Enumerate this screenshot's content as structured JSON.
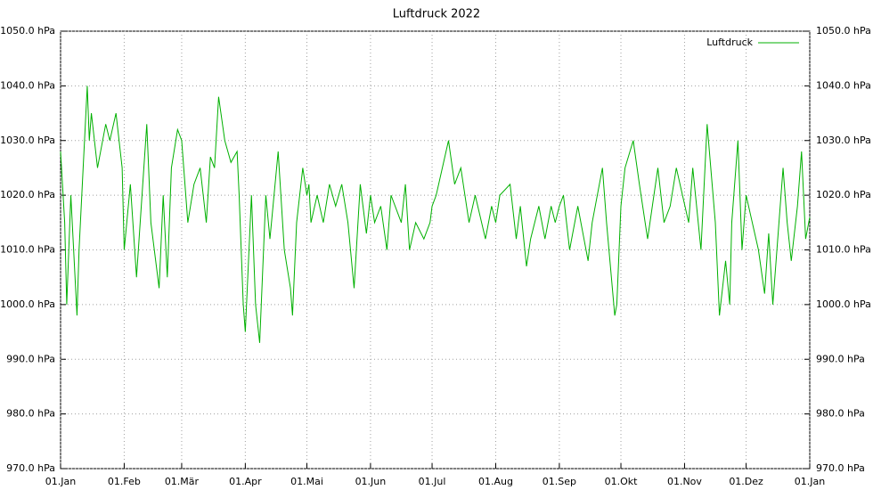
{
  "chart_data": {
    "type": "line",
    "title": "Luftdruck 2022",
    "legend": "upper right",
    "grid": true,
    "xlim": [
      0,
      365
    ],
    "ylim": [
      970,
      1050
    ],
    "xticks": [
      {
        "value": 0,
        "label": "01.Jan"
      },
      {
        "value": 31,
        "label": "01.Feb"
      },
      {
        "value": 59,
        "label": "01.Mär"
      },
      {
        "value": 90,
        "label": "01.Apr"
      },
      {
        "value": 120,
        "label": "01.Mai"
      },
      {
        "value": 151,
        "label": "01.Jun"
      },
      {
        "value": 181,
        "label": "01.Jul"
      },
      {
        "value": 212,
        "label": "01.Aug"
      },
      {
        "value": 243,
        "label": "01.Sep"
      },
      {
        "value": 273,
        "label": "01.Okt"
      },
      {
        "value": 304,
        "label": "01.Nov"
      },
      {
        "value": 334,
        "label": "01.Dez"
      },
      {
        "value": 365,
        "label": "01.Jan"
      }
    ],
    "yticks": [
      {
        "value": 970,
        "label": "970.0 hPa"
      },
      {
        "value": 980,
        "label": "980.0 hPa"
      },
      {
        "value": 990,
        "label": "990.0 hPa"
      },
      {
        "value": 1000,
        "label": "1000.0 hPa"
      },
      {
        "value": 1010,
        "label": "1010.0 hPa"
      },
      {
        "value": 1020,
        "label": "1020.0 hPa"
      },
      {
        "value": 1030,
        "label": "1030.0 hPa"
      },
      {
        "value": 1040,
        "label": "1040.0 hPa"
      },
      {
        "value": 1050,
        "label": "1050.0 hPa"
      }
    ],
    "series": [
      {
        "name": "Luftdruck",
        "color": "#00b000",
        "x": [
          0,
          2,
          3,
          5,
          8,
          9,
          13,
          14,
          15,
          18,
          22,
          24,
          27,
          30,
          31,
          34,
          37,
          42,
          44,
          48,
          50,
          52,
          54,
          57,
          59,
          60,
          62,
          65,
          68,
          71,
          73,
          75,
          77,
          80,
          83,
          86,
          87,
          89,
          90,
          93,
          95,
          97,
          100,
          102,
          104,
          106,
          109,
          112,
          113,
          115,
          118,
          120,
          121,
          122,
          125,
          128,
          131,
          134,
          137,
          140,
          143,
          146,
          149,
          151,
          153,
          156,
          159,
          161,
          166,
          168,
          170,
          173,
          177,
          180,
          181,
          183,
          189,
          192,
          195,
          199,
          202,
          207,
          210,
          212,
          214,
          219,
          222,
          224,
          227,
          229,
          233,
          236,
          239,
          241,
          243,
          245,
          248,
          252,
          255,
          257,
          259,
          264,
          266,
          270,
          271,
          273,
          275,
          279,
          282,
          286,
          291,
          294,
          297,
          300,
          303,
          306,
          308,
          312,
          315,
          319,
          321,
          324,
          326,
          327,
          330,
          332,
          334,
          337,
          340,
          343,
          345,
          347,
          352,
          354,
          356,
          359,
          361,
          363,
          365
        ],
        "values": [
          1028,
          1015,
          1000,
          1020,
          998,
          1010,
          1040,
          1030,
          1035,
          1025,
          1033,
          1030,
          1035,
          1025,
          1010,
          1022,
          1005,
          1033,
          1015,
          1003,
          1020,
          1005,
          1025,
          1032,
          1030,
          1025,
          1015,
          1022,
          1025,
          1015,
          1027,
          1025,
          1038,
          1030,
          1026,
          1028,
          1020,
          1000,
          995,
          1020,
          1000,
          993,
          1020,
          1012,
          1020,
          1028,
          1010,
          1003,
          998,
          1015,
          1025,
          1020,
          1022,
          1015,
          1020,
          1015,
          1022,
          1018,
          1022,
          1015,
          1003,
          1022,
          1013,
          1020,
          1015,
          1018,
          1010,
          1020,
          1015,
          1022,
          1010,
          1015,
          1012,
          1015,
          1018,
          1020,
          1030,
          1022,
          1025,
          1015,
          1020,
          1012,
          1018,
          1015,
          1020,
          1022,
          1012,
          1018,
          1007,
          1012,
          1018,
          1012,
          1018,
          1015,
          1018,
          1020,
          1010,
          1018,
          1012,
          1008,
          1015,
          1025,
          1015,
          998,
          1000,
          1018,
          1025,
          1030,
          1022,
          1012,
          1025,
          1015,
          1018,
          1025,
          1020,
          1015,
          1025,
          1010,
          1033,
          1015,
          998,
          1008,
          1000,
          1015,
          1030,
          1010,
          1020,
          1015,
          1010,
          1002,
          1013,
          1000,
          1025,
          1015,
          1008,
          1018,
          1028,
          1012,
          1016
        ]
      }
    ]
  }
}
